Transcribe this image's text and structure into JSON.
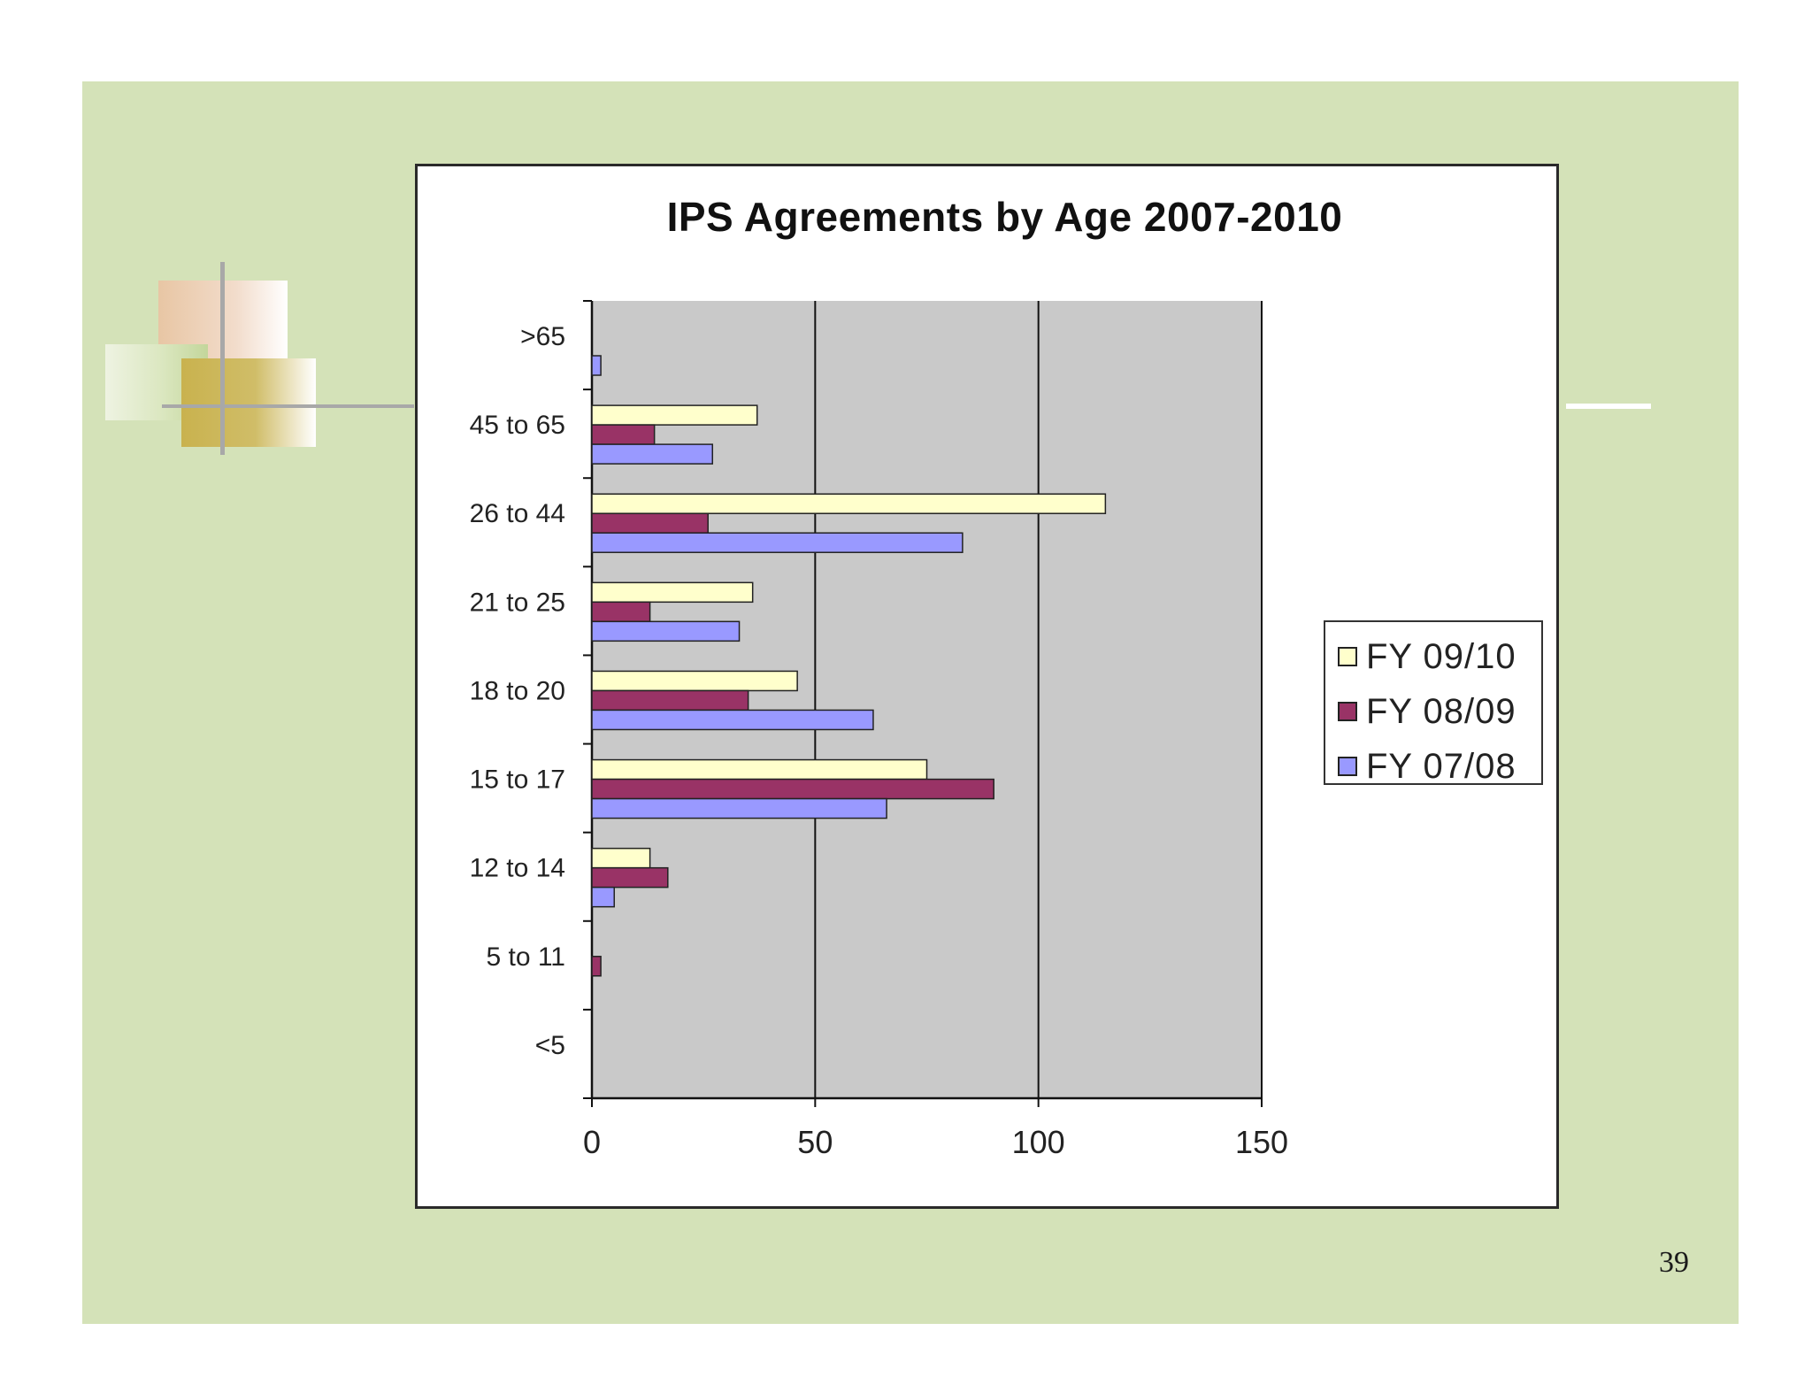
{
  "page": {
    "number": "39"
  },
  "colors": {
    "slide_background": "#d4e2b8",
    "plot_background": "#c9c9c9"
  },
  "chart_data": {
    "type": "bar",
    "orientation": "horizontal",
    "title": "IPS Agreements by Age  2007-2010",
    "xlabel": "",
    "ylabel": "",
    "categories": [
      ">65",
      "45 to 65",
      "26 to 44",
      "21 to 25",
      "18 to 20",
      "15 to 17",
      "12 to 14",
      "5 to 11",
      "<5"
    ],
    "series": [
      {
        "name": "FY 09/10",
        "color": "#ffffcc",
        "values": [
          0,
          37,
          115,
          36,
          46,
          75,
          13,
          0,
          0
        ]
      },
      {
        "name": "FY 08/09",
        "color": "#993366",
        "values": [
          0,
          14,
          26,
          13,
          35,
          90,
          17,
          2,
          0
        ]
      },
      {
        "name": "FY 07/08",
        "color": "#9999ff",
        "values": [
          2,
          27,
          83,
          33,
          63,
          66,
          5,
          0,
          0
        ]
      }
    ],
    "xlim": [
      0,
      150
    ],
    "xticks": [
      0,
      50,
      100,
      150
    ],
    "grid": "vertical major gridlines",
    "legend_position": "right"
  }
}
